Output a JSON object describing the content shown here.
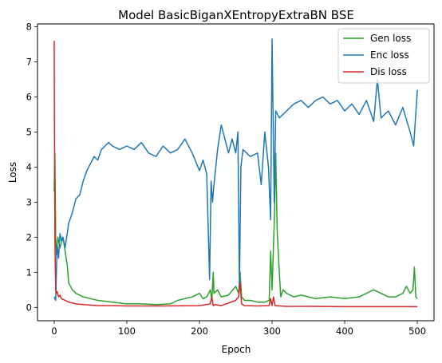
{
  "chart_data": {
    "type": "line",
    "title": "Model BasicBiganXEntropyExtraBN BSE",
    "xlabel": "Epoch",
    "ylabel": "Loss",
    "xlim": [
      -23,
      523
    ],
    "ylim": [
      -0.38,
      8.08
    ],
    "xticks": [
      0,
      100,
      200,
      300,
      400,
      500
    ],
    "yticks": [
      0,
      1,
      2,
      3,
      4,
      5,
      6,
      7,
      8
    ],
    "grid": false,
    "legend": {
      "placement": "top-right"
    },
    "series": [
      {
        "name": "Gen loss",
        "color": "#2ca02c",
        "x": [
          0,
          1,
          2,
          3,
          5,
          8,
          12,
          15,
          18,
          20,
          25,
          30,
          40,
          50,
          60,
          80,
          100,
          120,
          140,
          160,
          170,
          180,
          190,
          200,
          205,
          210,
          215,
          217,
          219,
          220,
          225,
          230,
          240,
          250,
          254,
          256,
          258,
          262,
          270,
          280,
          290,
          296,
          298,
          300,
          303,
          305,
          307,
          310,
          312,
          315,
          320,
          330,
          340,
          350,
          360,
          380,
          400,
          420,
          440,
          460,
          470,
          480,
          485,
          490,
          494,
          496,
          498,
          500
        ],
        "y": [
          3.3,
          4.4,
          2.0,
          1.5,
          2.0,
          1.7,
          2.0,
          1.6,
          1.2,
          0.7,
          0.5,
          0.4,
          0.3,
          0.25,
          0.2,
          0.15,
          0.1,
          0.1,
          0.08,
          0.1,
          0.2,
          0.25,
          0.3,
          0.4,
          0.25,
          0.3,
          0.5,
          0.2,
          1.0,
          0.4,
          0.5,
          0.3,
          0.35,
          0.6,
          0.4,
          1.0,
          0.3,
          0.2,
          0.2,
          0.15,
          0.15,
          0.2,
          1.6,
          0.5,
          2.4,
          4.4,
          2.2,
          1.0,
          0.3,
          0.5,
          0.4,
          0.3,
          0.35,
          0.3,
          0.25,
          0.3,
          0.25,
          0.3,
          0.5,
          0.3,
          0.3,
          0.4,
          0.6,
          0.4,
          0.5,
          1.15,
          0.3,
          0.25
        ]
      },
      {
        "name": "Enc loss",
        "color": "#1f77b4",
        "x": [
          0,
          2,
          4,
          6,
          8,
          10,
          12,
          15,
          20,
          25,
          30,
          35,
          40,
          45,
          50,
          55,
          60,
          65,
          70,
          75,
          80,
          90,
          100,
          110,
          120,
          130,
          140,
          150,
          160,
          170,
          180,
          190,
          200,
          205,
          210,
          214,
          216,
          218,
          220,
          225,
          230,
          240,
          245,
          250,
          253,
          255,
          257,
          260,
          270,
          280,
          285,
          290,
          295,
          298,
          300,
          303,
          305,
          310,
          320,
          330,
          340,
          350,
          360,
          370,
          380,
          390,
          400,
          410,
          420,
          430,
          440,
          445,
          450,
          460,
          470,
          480,
          490,
          495,
          500
        ],
        "y": [
          0.3,
          0.2,
          1.8,
          1.4,
          2.1,
          1.9,
          2.0,
          1.7,
          2.4,
          2.7,
          3.1,
          3.2,
          3.6,
          3.9,
          4.1,
          4.3,
          4.2,
          4.5,
          4.6,
          4.7,
          4.6,
          4.5,
          4.6,
          4.5,
          4.7,
          4.4,
          4.3,
          4.6,
          4.4,
          4.5,
          4.8,
          4.4,
          3.9,
          4.2,
          3.8,
          0.8,
          3.6,
          3.0,
          3.5,
          4.5,
          5.2,
          4.4,
          4.8,
          4.4,
          5.0,
          0.5,
          4.0,
          4.5,
          4.3,
          4.4,
          3.5,
          5.0,
          4.0,
          2.5,
          7.65,
          3.0,
          5.6,
          5.4,
          5.6,
          5.8,
          5.9,
          5.7,
          5.9,
          6.0,
          5.8,
          5.9,
          5.6,
          5.8,
          5.5,
          5.9,
          5.3,
          6.5,
          5.4,
          5.6,
          5.2,
          5.7,
          5.0,
          4.6,
          6.2
        ]
      },
      {
        "name": "Dis loss",
        "color": "#d62728",
        "x": [
          0,
          1,
          2,
          3,
          4,
          6,
          8,
          10,
          15,
          20,
          30,
          40,
          60,
          80,
          100,
          150,
          200,
          215,
          217,
          219,
          221,
          230,
          250,
          254,
          256,
          258,
          262,
          280,
          296,
          298,
          300,
          302,
          304,
          320,
          350,
          400,
          450,
          500
        ],
        "y": [
          7.6,
          2.0,
          0.5,
          0.4,
          0.45,
          0.3,
          0.35,
          0.25,
          0.2,
          0.15,
          0.1,
          0.08,
          0.05,
          0.05,
          0.04,
          0.04,
          0.05,
          0.1,
          0.3,
          0.05,
          0.08,
          0.05,
          0.2,
          0.3,
          0.7,
          0.1,
          0.05,
          0.04,
          0.05,
          0.25,
          0.05,
          0.3,
          0.05,
          0.03,
          0.03,
          0.02,
          0.02,
          0.02
        ]
      }
    ]
  }
}
